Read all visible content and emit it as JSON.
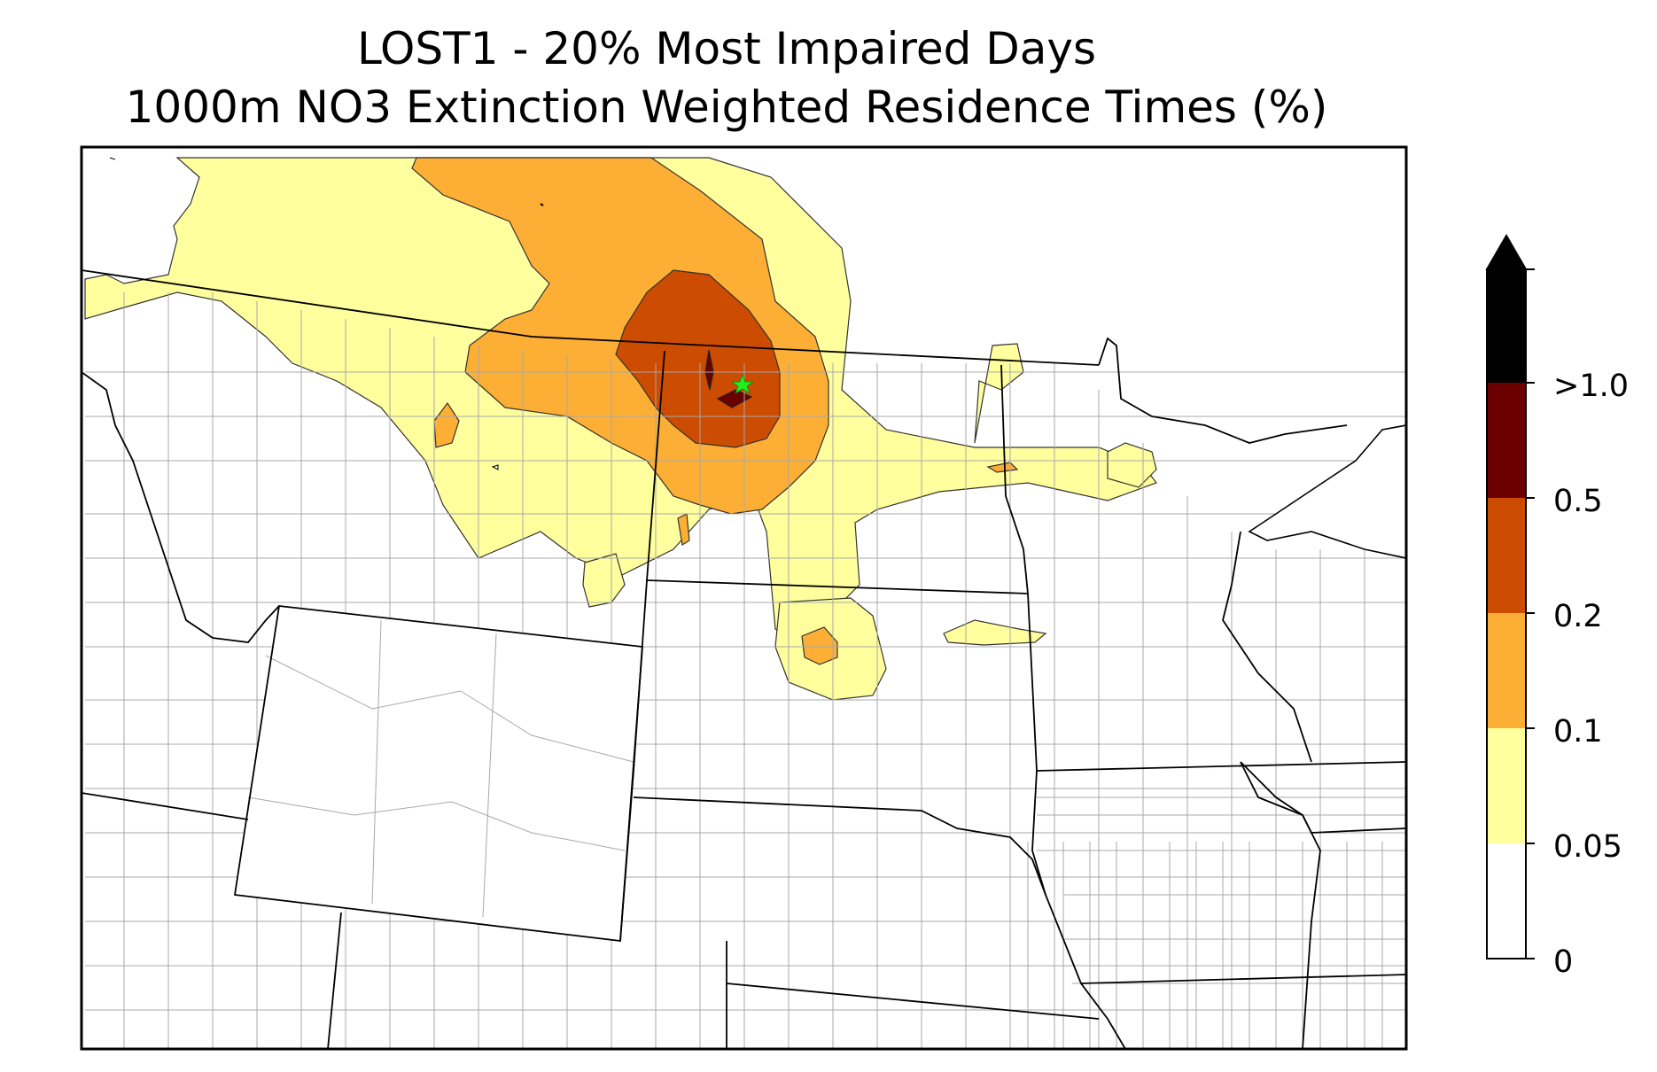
{
  "title": {
    "line1": "LOST1 - 20% Most Impaired Days",
    "line2": "1000m NO3 Extinction Weighted Residence Times (%)"
  },
  "map": {
    "region": "Northern Great Plains / Upper Midwest",
    "site_marker": "green-star-icon",
    "boundaries": [
      "state-borders",
      "county-borders",
      "canada-border",
      "great-lakes-shoreline"
    ]
  },
  "colorbar": {
    "extend": "max",
    "levels": [
      {
        "label": "0",
        "value": 0,
        "color": "#ffffff"
      },
      {
        "label": "0.05",
        "value": 0.05,
        "color": "#ffff9e"
      },
      {
        "label": "0.1",
        "value": 0.1,
        "color": "#fdae35"
      },
      {
        "label": "0.2",
        "value": 0.2,
        "color": "#cc4c02"
      },
      {
        "label": "0.5",
        "value": 0.5,
        "color": "#6b0000"
      },
      {
        "label": ">1.0",
        "value": 1.0,
        "color": "#000000"
      }
    ]
  }
}
